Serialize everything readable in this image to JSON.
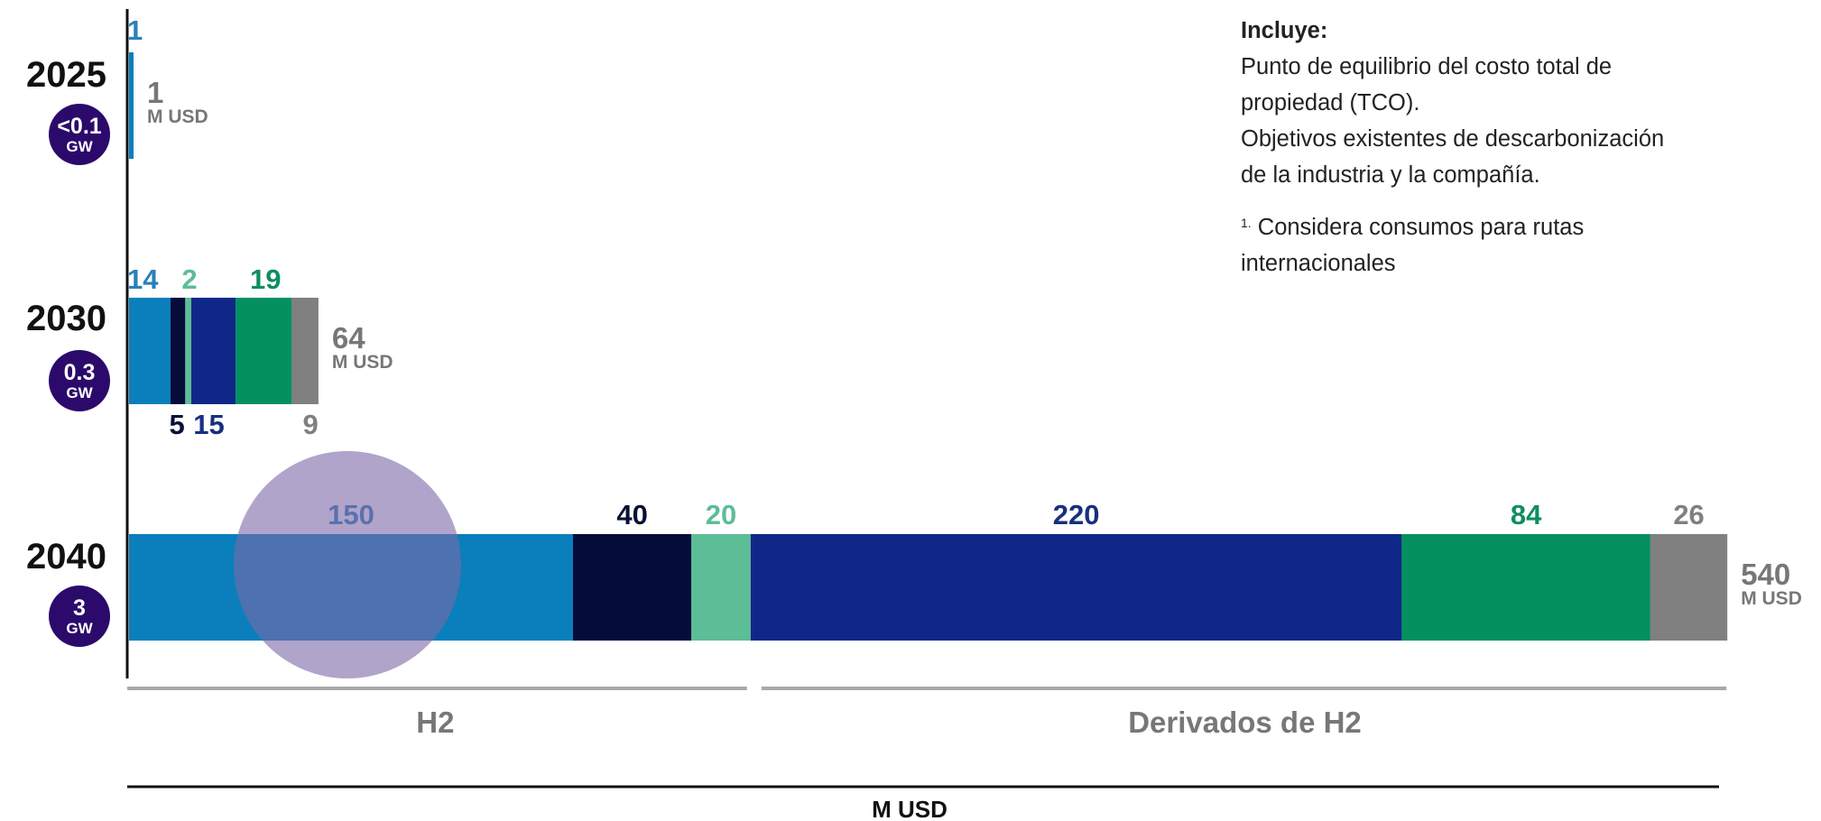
{
  "chart_data": {
    "type": "bar",
    "orientation": "horizontal",
    "stacked": true,
    "xlabel": "M USD",
    "categories": [
      "2025",
      "2030",
      "2040"
    ],
    "capacity_badges": [
      {
        "value": "<0.1",
        "unit": "GW"
      },
      {
        "value": "0.3",
        "unit": "GW"
      },
      {
        "value": "3",
        "unit": "GW"
      }
    ],
    "series_colors": [
      "#0a7fbc",
      "#060c3a",
      "#5cbd96",
      "#0f2888",
      "#04915f",
      "#808080"
    ],
    "label_colors": [
      "#2a80ba",
      "#0a0f36",
      "#5cbd96",
      "#17307f",
      "#0e8e5e",
      "#808080"
    ],
    "bars": [
      {
        "category": "2025",
        "values": [
          1,
          0,
          0,
          0,
          0,
          0
        ],
        "labels": [
          "1",
          "",
          "",
          "",
          "",
          ""
        ],
        "total": "1",
        "total_unit": "M USD"
      },
      {
        "category": "2030",
        "values": [
          14,
          5,
          2,
          15,
          19,
          9
        ],
        "labels": [
          "14",
          "5",
          "2",
          "15",
          "19",
          "9"
        ],
        "total": "64",
        "total_unit": "M USD"
      },
      {
        "category": "2040",
        "values": [
          150,
          40,
          20,
          220,
          84,
          26
        ],
        "labels": [
          "150",
          "40",
          "20",
          "220",
          "84",
          "26"
        ],
        "total": "540",
        "total_unit": "M USD"
      }
    ],
    "groups": [
      {
        "name": "H2",
        "series": [
          0,
          1,
          2
        ]
      },
      {
        "name": "Derivados de H2",
        "series": [
          3,
          4,
          5
        ]
      }
    ]
  },
  "notes": {
    "title": "Incluye:",
    "lines": [
      "Punto de equilibrio del costo total de",
      "propiedad (TCO).",
      "Objetivos existentes de descarbonización",
      "de la industria y la compañía."
    ],
    "footnote_marker": "1.",
    "footnote_lines": [
      " Considera consumos para rutas",
      "internacionales"
    ]
  }
}
